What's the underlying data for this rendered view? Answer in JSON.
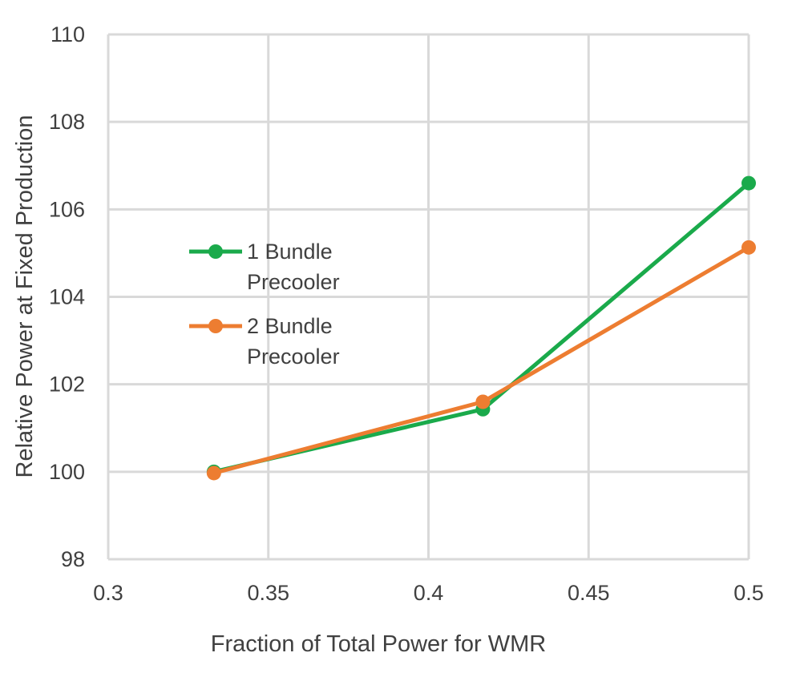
{
  "chart_data": {
    "type": "line",
    "xlabel": "Fraction of Total Power for WMR",
    "ylabel": "Relative Power at Fixed Production",
    "xlim": [
      0.3,
      0.5
    ],
    "ylim": [
      98,
      110
    ],
    "x_ticks": [
      "0.3",
      "0.35",
      "0.4",
      "0.45",
      "0.5"
    ],
    "y_ticks": [
      "98",
      "100",
      "102",
      "104",
      "106",
      "108",
      "110"
    ],
    "grid": true,
    "legend_position": "left",
    "series": [
      {
        "name_lines": [
          "1 Bundle",
          "Precooler"
        ],
        "name": "1 Bundle Precooler",
        "color": "#1aaa4b",
        "x": [
          0.333,
          0.417,
          0.5
        ],
        "y": [
          100.0,
          101.43,
          106.6
        ]
      },
      {
        "name_lines": [
          "2 Bundle",
          "Precooler"
        ],
        "name": "2 Bundle Precooler",
        "color": "#ed7d31",
        "x": [
          0.333,
          0.417,
          0.5
        ],
        "y": [
          99.97,
          101.6,
          105.13
        ]
      }
    ]
  }
}
